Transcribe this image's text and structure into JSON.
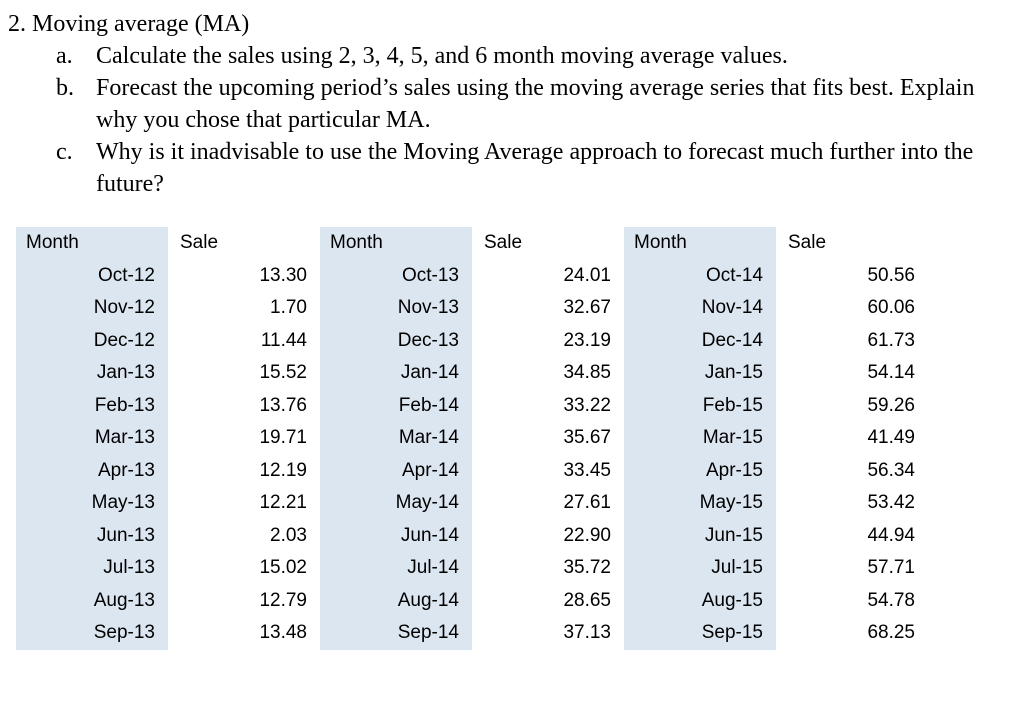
{
  "document": {
    "title": "2. Moving average (MA)",
    "items": [
      {
        "label": "a.",
        "text": "Calculate the sales using 2, 3, 4, 5, and 6 month moving average values."
      },
      {
        "label": "b.",
        "text": "Forecast the upcoming period’s sales using the moving average series that fits best.  Explain why you chose that particular MA."
      },
      {
        "label": "c.",
        "text": "Why is it inadvisable to use the Moving Average approach to forecast much further into the future?"
      }
    ]
  },
  "tables": [
    {
      "headers": [
        "Month",
        "Sale"
      ],
      "rows": [
        [
          "Oct-12",
          "13.30"
        ],
        [
          "Nov-12",
          "1.70"
        ],
        [
          "Dec-12",
          "11.44"
        ],
        [
          "Jan-13",
          "15.52"
        ],
        [
          "Feb-13",
          "13.76"
        ],
        [
          "Mar-13",
          "19.71"
        ],
        [
          "Apr-13",
          "12.19"
        ],
        [
          "May-13",
          "12.21"
        ],
        [
          "Jun-13",
          "2.03"
        ],
        [
          "Jul-13",
          "15.02"
        ],
        [
          "Aug-13",
          "12.79"
        ],
        [
          "Sep-13",
          "13.48"
        ]
      ]
    },
    {
      "headers": [
        "Month",
        "Sale"
      ],
      "rows": [
        [
          "Oct-13",
          "24.01"
        ],
        [
          "Nov-13",
          "32.67"
        ],
        [
          "Dec-13",
          "23.19"
        ],
        [
          "Jan-14",
          "34.85"
        ],
        [
          "Feb-14",
          "33.22"
        ],
        [
          "Mar-14",
          "35.67"
        ],
        [
          "Apr-14",
          "33.45"
        ],
        [
          "May-14",
          "27.61"
        ],
        [
          "Jun-14",
          "22.90"
        ],
        [
          "Jul-14",
          "35.72"
        ],
        [
          "Aug-14",
          "28.65"
        ],
        [
          "Sep-14",
          "37.13"
        ]
      ]
    },
    {
      "headers": [
        "Month",
        "Sale"
      ],
      "rows": [
        [
          "Oct-14",
          "50.56"
        ],
        [
          "Nov-14",
          "60.06"
        ],
        [
          "Dec-14",
          "61.73"
        ],
        [
          "Jan-15",
          "54.14"
        ],
        [
          "Feb-15",
          "59.26"
        ],
        [
          "Mar-15",
          "41.49"
        ],
        [
          "Apr-15",
          "56.34"
        ],
        [
          "May-15",
          "53.42"
        ],
        [
          "Jun-15",
          "44.94"
        ],
        [
          "Jul-15",
          "57.71"
        ],
        [
          "Aug-15",
          "54.78"
        ],
        [
          "Sep-15",
          "68.25"
        ]
      ]
    }
  ],
  "colors": {
    "month_column_bg": "#dce6f1",
    "page_bg": "#ffffff",
    "text": "#000000"
  }
}
